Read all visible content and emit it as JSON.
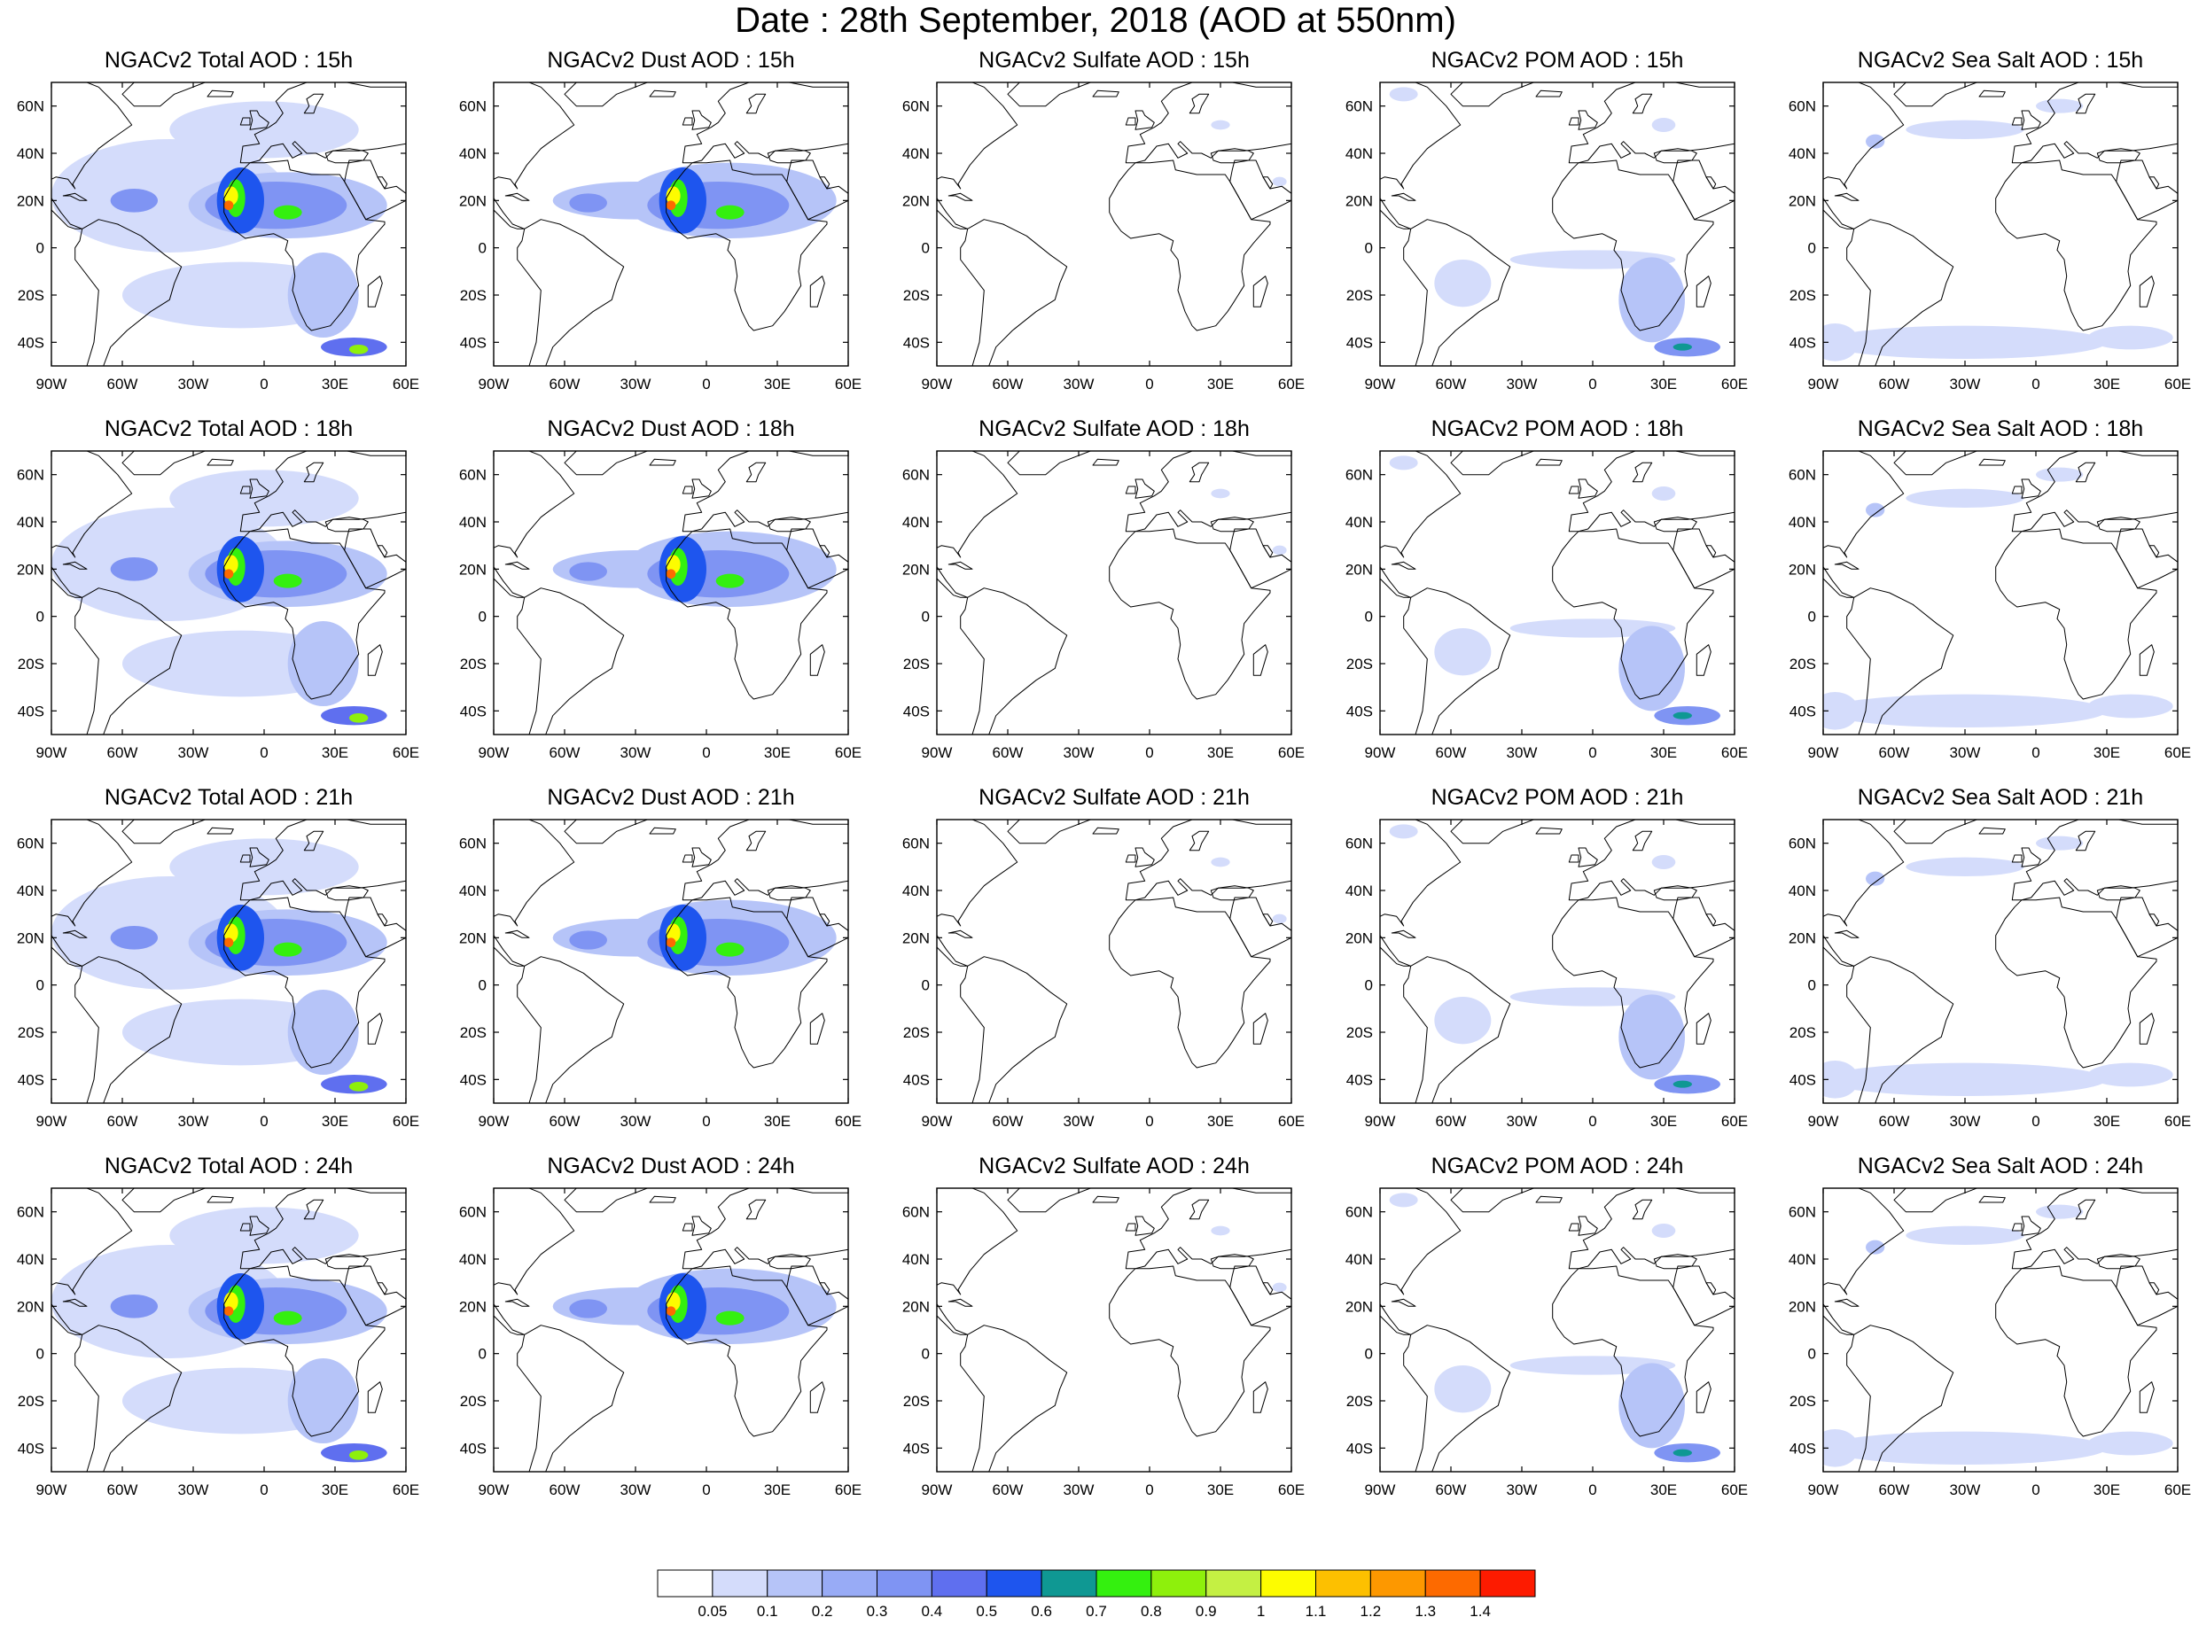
{
  "title": "Date : 28th September, 2018 (AOD at 550nm)",
  "map_data": {
    "lon_ticks": [
      "90W",
      "60W",
      "30W",
      "0",
      "30E",
      "60E"
    ],
    "lat_ticks": [
      "60N",
      "40N",
      "20N",
      "0",
      "20S",
      "40S"
    ],
    "extent": {
      "lon": [
        -90,
        60
      ],
      "lat": [
        -50,
        70
      ]
    },
    "columns": [
      {
        "species": "total",
        "base_title": "NGACv2 Total AOD"
      },
      {
        "species": "dust",
        "base_title": "NGACv2 Dust AOD"
      },
      {
        "species": "sulfate",
        "base_title": "NGACv2 Sulfate AOD"
      },
      {
        "species": "pom",
        "base_title": "NGACv2 POM AOD"
      },
      {
        "species": "seasalt",
        "base_title": "NGACv2 Sea Salt AOD"
      }
    ],
    "rows": [
      "15h",
      "18h",
      "21h",
      "24h"
    ],
    "panel_titles": [
      [
        "NGACv2 Total AOD : 15h",
        "NGACv2 Dust AOD : 15h",
        "NGACv2 Sulfate AOD : 15h",
        "NGACv2 POM AOD : 15h",
        "NGACv2 Sea Salt AOD : 15h"
      ],
      [
        "NGACv2 Total AOD : 18h",
        "NGACv2 Dust AOD : 18h",
        "NGACv2 Sulfate AOD : 18h",
        "NGACv2 POM AOD : 18h",
        "NGACv2 Sea Salt AOD : 18h"
      ],
      [
        "NGACv2 Total AOD : 21h",
        "NGACv2 Dust AOD : 21h",
        "NGACv2 Sulfate AOD : 21h",
        "NGACv2 POM AOD : 21h",
        "NGACv2 Sea Salt AOD : 21h"
      ],
      [
        "NGACv2 Total AOD : 24h",
        "NGACv2 Dust AOD : 24h",
        "NGACv2 Sulfate AOD : 24h",
        "NGACv2 POM AOD : 24h",
        "NGACv2 Sea Salt  AOD : 24h"
      ]
    ]
  },
  "colorbar": {
    "labels": [
      "0.05",
      "0.1",
      "0.2",
      "0.3",
      "0.4",
      "0.5",
      "0.6",
      "0.7",
      "0.8",
      "0.9",
      "1",
      "1.1",
      "1.2",
      "1.3",
      "1.4"
    ],
    "colors": [
      "#ffffff",
      "#d4dcfb",
      "#b6c4f8",
      "#98abf6",
      "#7f94f3",
      "#5f6fef",
      "#1e55ee",
      "#0f9893",
      "#34f00f",
      "#8ef00c",
      "#c4f043",
      "#fdfc00",
      "#fdc000",
      "#fd9800",
      "#fd6a00",
      "#fd1b00"
    ]
  },
  "land": {
    "north_america": [
      [
        -90,
        70
      ],
      [
        -80,
        72
      ],
      [
        -70,
        68
      ],
      [
        -62,
        60
      ],
      [
        -56,
        52
      ],
      [
        -66,
        45
      ],
      [
        -70,
        42
      ],
      [
        -76,
        35
      ],
      [
        -81,
        27
      ],
      [
        -80,
        25
      ],
      [
        -83,
        29
      ],
      [
        -88,
        30
      ],
      [
        -90,
        29
      ]
    ],
    "south_america": [
      [
        -77,
        8
      ],
      [
        -70,
        12
      ],
      [
        -62,
        10
      ],
      [
        -52,
        5
      ],
      [
        -42,
        -3
      ],
      [
        -35,
        -8
      ],
      [
        -38,
        -15
      ],
      [
        -40,
        -22
      ],
      [
        -48,
        -27
      ],
      [
        -58,
        -35
      ],
      [
        -65,
        -42
      ],
      [
        -68,
        -50
      ],
      [
        -75,
        -50
      ],
      [
        -72,
        -40
      ],
      [
        -71,
        -30
      ],
      [
        -70,
        -18
      ],
      [
        -80,
        -5
      ],
      [
        -80,
        0
      ],
      [
        -78,
        3
      ]
    ],
    "central_america": [
      [
        -90,
        16
      ],
      [
        -87,
        13
      ],
      [
        -83,
        9
      ],
      [
        -80,
        8
      ],
      [
        -77,
        8
      ],
      [
        -82,
        10
      ],
      [
        -86,
        15
      ],
      [
        -88,
        18
      ],
      [
        -90,
        21
      ]
    ],
    "greenland": [
      [
        -55,
        60
      ],
      [
        -44,
        60
      ],
      [
        -38,
        65
      ],
      [
        -25,
        70
      ],
      [
        -55,
        70
      ],
      [
        -60,
        65
      ]
    ],
    "iceland": [
      [
        -24,
        64
      ],
      [
        -14,
        64
      ],
      [
        -13,
        66
      ],
      [
        -22,
        66.5
      ]
    ],
    "europe": [
      [
        -10,
        36
      ],
      [
        -9,
        43
      ],
      [
        -2,
        44
      ],
      [
        -4,
        48
      ],
      [
        2,
        51
      ],
      [
        5,
        53
      ],
      [
        8,
        57
      ],
      [
        5,
        62
      ],
      [
        10,
        67
      ],
      [
        18,
        70
      ],
      [
        30,
        71
      ],
      [
        45,
        68
      ],
      [
        60,
        68
      ],
      [
        60,
        44
      ],
      [
        48,
        42
      ],
      [
        40,
        41
      ],
      [
        29,
        41
      ],
      [
        26,
        38
      ],
      [
        22,
        40
      ],
      [
        18,
        40
      ],
      [
        13,
        45
      ],
      [
        12,
        44
      ],
      [
        16,
        40
      ],
      [
        12,
        38
      ],
      [
        8,
        44
      ],
      [
        3,
        43
      ],
      [
        -2,
        37
      ],
      [
        -6,
        36
      ]
    ],
    "great_britain": [
      [
        -6,
        50
      ],
      [
        1,
        51
      ],
      [
        2,
        53
      ],
      [
        -2,
        56
      ],
      [
        -3,
        58
      ],
      [
        -6,
        58
      ],
      [
        -5,
        54
      ]
    ],
    "ireland": [
      [
        -10,
        52
      ],
      [
        -6,
        52
      ],
      [
        -6,
        55
      ],
      [
        -9,
        55
      ]
    ],
    "scandinavia_gulf": [
      [
        17,
        57
      ],
      [
        19,
        60
      ],
      [
        18,
        63
      ],
      [
        21,
        65
      ],
      [
        25,
        65
      ],
      [
        22,
        60
      ],
      [
        21,
        57
      ]
    ],
    "africa": [
      [
        -17,
        15
      ],
      [
        -17,
        21
      ],
      [
        -13,
        28
      ],
      [
        -9,
        33
      ],
      [
        -6,
        36
      ],
      [
        0,
        36
      ],
      [
        10,
        37
      ],
      [
        11,
        33
      ],
      [
        20,
        31
      ],
      [
        25,
        31
      ],
      [
        32,
        31
      ],
      [
        34,
        28
      ],
      [
        38,
        21
      ],
      [
        43,
        12
      ],
      [
        51,
        11
      ],
      [
        51,
        10
      ],
      [
        44,
        2
      ],
      [
        40,
        -3
      ],
      [
        39,
        -10
      ],
      [
        40,
        -16
      ],
      [
        35,
        -24
      ],
      [
        33,
        -27
      ],
      [
        28,
        -33
      ],
      [
        20,
        -35
      ],
      [
        18,
        -33
      ],
      [
        15,
        -27
      ],
      [
        12,
        -18
      ],
      [
        13,
        -12
      ],
      [
        12,
        -5
      ],
      [
        9,
        -1
      ],
      [
        10,
        3
      ],
      [
        8,
        4
      ],
      [
        4,
        6
      ],
      [
        -2,
        5
      ],
      [
        -8,
        4
      ],
      [
        -12,
        7
      ],
      [
        -15,
        11
      ]
    ],
    "madagascar": [
      [
        44,
        -25
      ],
      [
        47,
        -25
      ],
      [
        50,
        -15
      ],
      [
        49,
        -12
      ],
      [
        44,
        -16
      ]
    ],
    "middle_east": [
      [
        34,
        28
      ],
      [
        35,
        33
      ],
      [
        36,
        37
      ],
      [
        45,
        37
      ],
      [
        48,
        30
      ],
      [
        51,
        25
      ],
      [
        56,
        26
      ],
      [
        60,
        23
      ],
      [
        60,
        20
      ],
      [
        52,
        16
      ],
      [
        43,
        12
      ],
      [
        38,
        21
      ]
    ],
    "anatolia": [
      [
        26,
        40
      ],
      [
        29,
        41
      ],
      [
        36,
        42
      ],
      [
        42,
        41
      ],
      [
        44,
        40
      ],
      [
        42,
        37
      ],
      [
        36,
        36
      ],
      [
        30,
        36
      ],
      [
        27,
        37
      ]
    ],
    "arabian_gulf_top": [
      [
        48,
        30
      ],
      [
        50,
        30
      ],
      [
        52,
        27
      ],
      [
        51,
        25
      ]
    ],
    "cuba": [
      [
        -85,
        22
      ],
      [
        -80,
        23
      ],
      [
        -75,
        20
      ],
      [
        -78,
        20
      ],
      [
        -82,
        22
      ]
    ]
  },
  "plumes": {
    "total": [
      {
        "lon": -40,
        "lat": 22,
        "rx": 50,
        "ry": 24,
        "level": 1
      },
      {
        "lon": 0,
        "lat": 50,
        "rx": 40,
        "ry": 12,
        "level": 1
      },
      {
        "lon": -10,
        "lat": -20,
        "rx": 50,
        "ry": 14,
        "level": 1
      },
      {
        "lon": 10,
        "lat": 18,
        "rx": 42,
        "ry": 14,
        "level": 2
      },
      {
        "lon": 25,
        "lat": -20,
        "rx": 15,
        "ry": 18,
        "level": 2
      },
      {
        "lon": -55,
        "lat": 20,
        "rx": 10,
        "ry": 5,
        "level": 4
      },
      {
        "lon": 5,
        "lat": 18,
        "rx": 30,
        "ry": 10,
        "level": 4
      },
      {
        "lon": -10,
        "lat": 20,
        "rx": 10,
        "ry": 14,
        "level": 6
      },
      {
        "lon": -12,
        "lat": 21,
        "rx": 4,
        "ry": 8,
        "level": 8
      },
      {
        "lon": -14,
        "lat": 22,
        "rx": 3,
        "ry": 4,
        "level": 11
      },
      {
        "lon": -15,
        "lat": 18,
        "rx": 2,
        "ry": 2,
        "level": 14
      },
      {
        "lon": 10,
        "lat": 15,
        "rx": 6,
        "ry": 3,
        "level": 8
      },
      {
        "lon": 38,
        "lat": -42,
        "rx": 14,
        "ry": 4,
        "level": 5
      },
      {
        "lon": 40,
        "lat": -43,
        "rx": 4,
        "ry": 2,
        "level": 9
      }
    ],
    "dust": [
      {
        "lon": -30,
        "lat": 20,
        "rx": 35,
        "ry": 8,
        "level": 2
      },
      {
        "lon": 10,
        "lat": 20,
        "rx": 45,
        "ry": 16,
        "level": 2
      },
      {
        "lon": -50,
        "lat": 19,
        "rx": 8,
        "ry": 4,
        "level": 4
      },
      {
        "lon": 5,
        "lat": 18,
        "rx": 30,
        "ry": 10,
        "level": 4
      },
      {
        "lon": -10,
        "lat": 20,
        "rx": 10,
        "ry": 14,
        "level": 6
      },
      {
        "lon": -12,
        "lat": 21,
        "rx": 4,
        "ry": 8,
        "level": 8
      },
      {
        "lon": -14,
        "lat": 22,
        "rx": 3,
        "ry": 4,
        "level": 11
      },
      {
        "lon": -15,
        "lat": 18,
        "rx": 2,
        "ry": 2,
        "level": 14
      },
      {
        "lon": 10,
        "lat": 15,
        "rx": 6,
        "ry": 3,
        "level": 8
      }
    ],
    "sulfate": [
      {
        "lon": 30,
        "lat": 52,
        "rx": 4,
        "ry": 2,
        "level": 1
      },
      {
        "lon": 55,
        "lat": 28,
        "rx": 3,
        "ry": 2,
        "level": 1
      }
    ],
    "pom": [
      {
        "lon": 0,
        "lat": -5,
        "rx": 35,
        "ry": 4,
        "level": 1
      },
      {
        "lon": -55,
        "lat": -15,
        "rx": 12,
        "ry": 10,
        "level": 1
      },
      {
        "lon": 25,
        "lat": -22,
        "rx": 14,
        "ry": 18,
        "level": 2
      },
      {
        "lon": 40,
        "lat": -42,
        "rx": 14,
        "ry": 4,
        "level": 4
      },
      {
        "lon": 38,
        "lat": -42,
        "rx": 4,
        "ry": 1.5,
        "level": 7
      },
      {
        "lon": -80,
        "lat": 65,
        "rx": 6,
        "ry": 3,
        "level": 1
      },
      {
        "lon": 30,
        "lat": 52,
        "rx": 5,
        "ry": 3,
        "level": 1
      }
    ],
    "seasalt": [
      {
        "lon": -30,
        "lat": -40,
        "rx": 60,
        "ry": 7,
        "level": 1
      },
      {
        "lon": -85,
        "lat": -40,
        "rx": 10,
        "ry": 8,
        "level": 1
      },
      {
        "lon": 40,
        "lat": -38,
        "rx": 18,
        "ry": 5,
        "level": 1
      },
      {
        "lon": -30,
        "lat": 50,
        "rx": 25,
        "ry": 4,
        "level": 1
      },
      {
        "lon": -68,
        "lat": 45,
        "rx": 4,
        "ry": 3,
        "level": 2
      },
      {
        "lon": 10,
        "lat": 60,
        "rx": 10,
        "ry": 3,
        "level": 1
      }
    ]
  }
}
